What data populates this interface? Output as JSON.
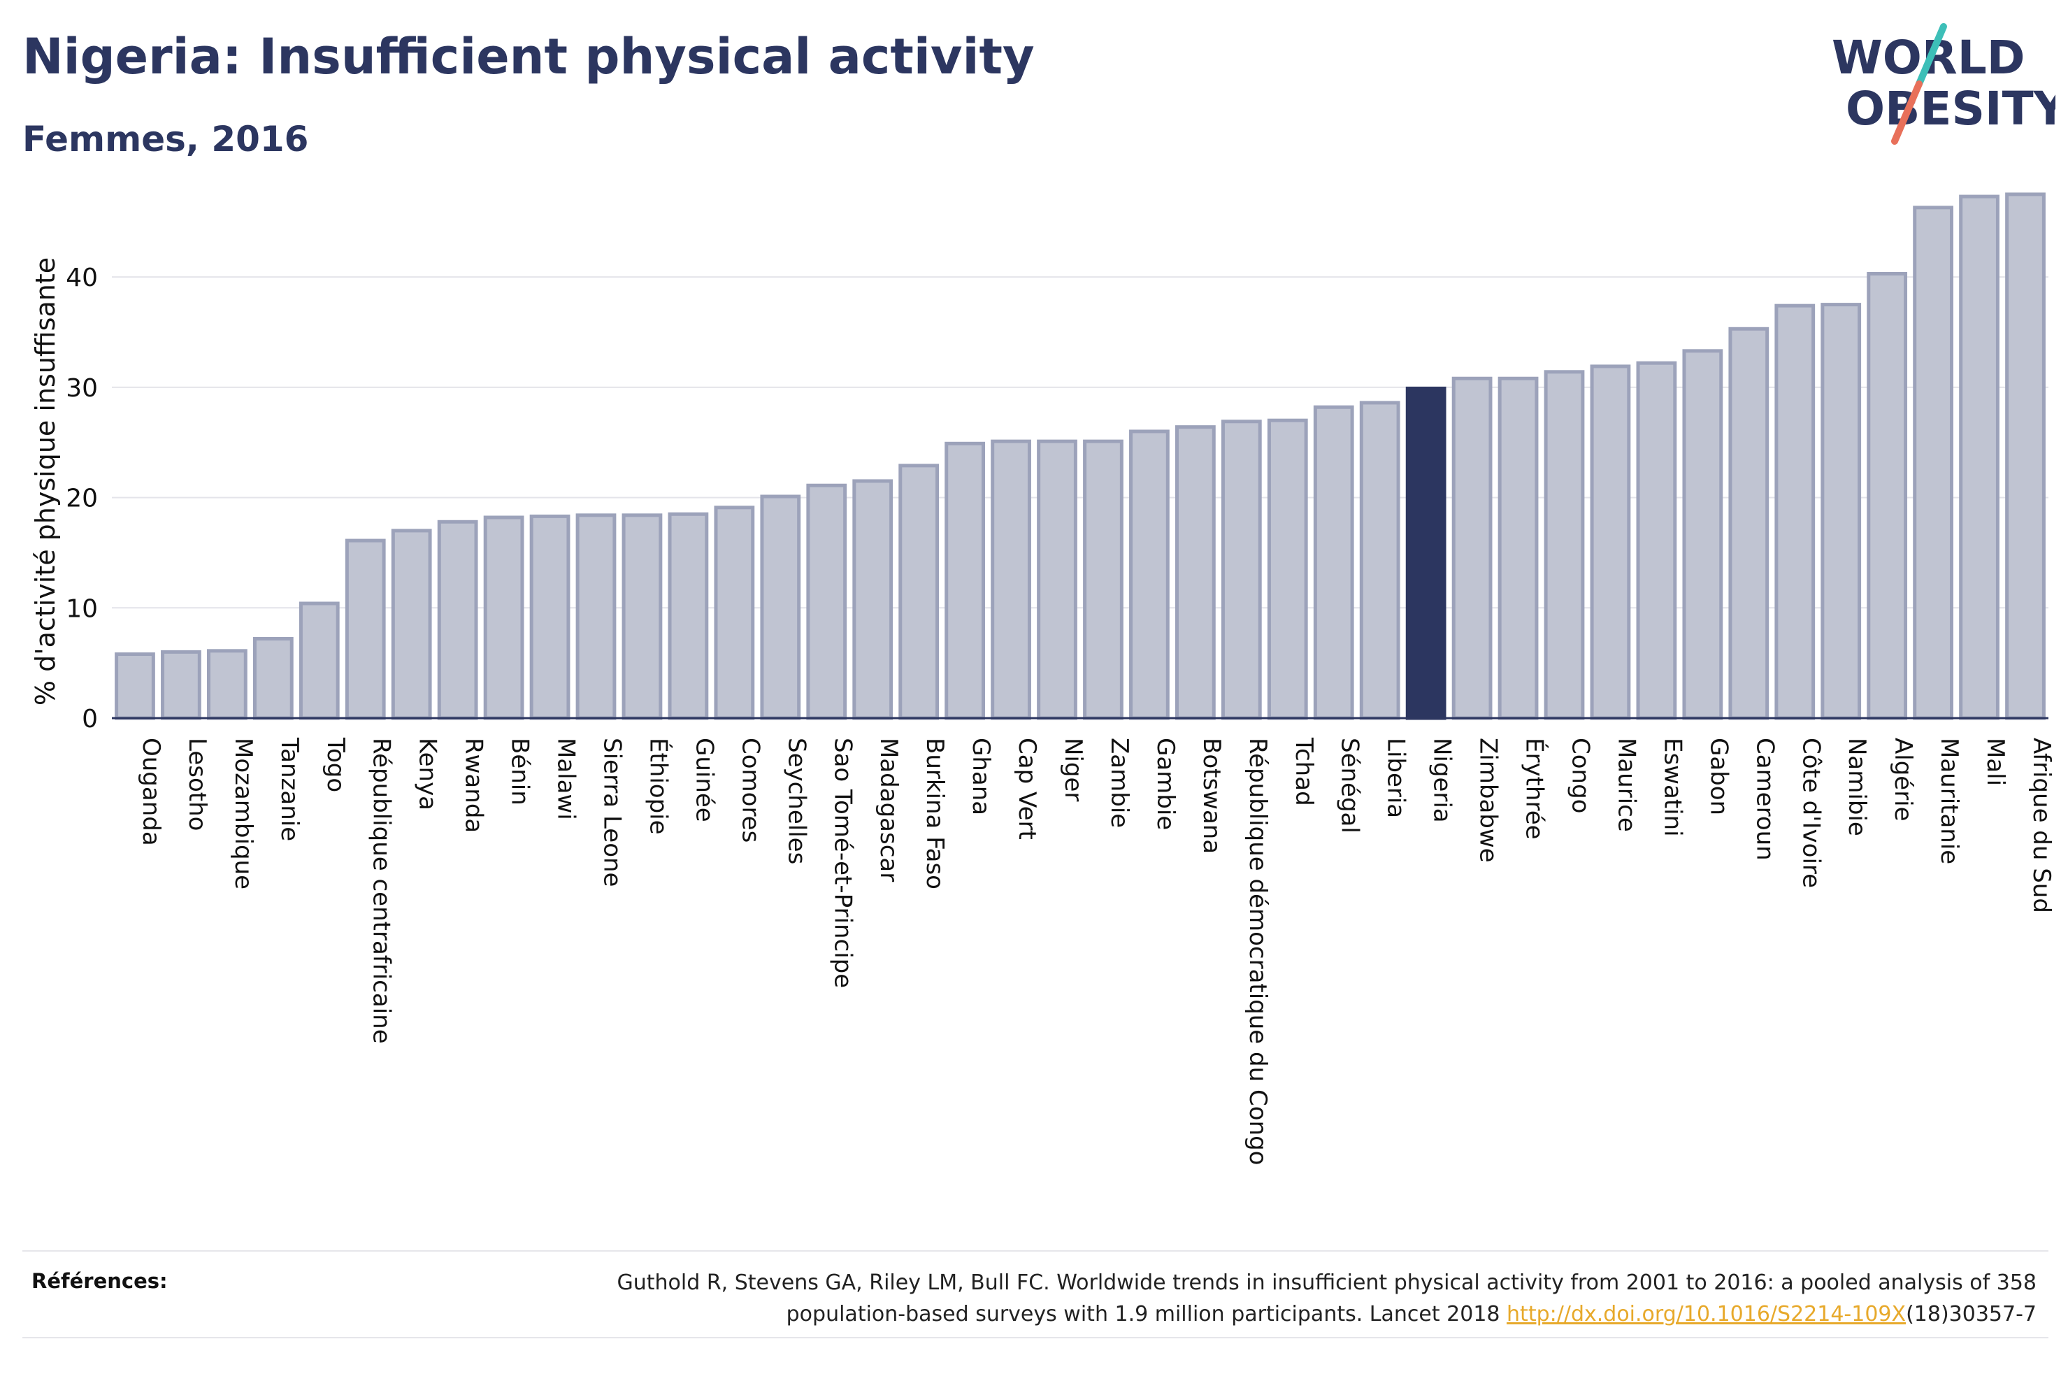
{
  "header": {
    "title": "Nigeria: Insufficient physical activity",
    "subtitle": "Femmes, 2016"
  },
  "logo": {
    "line1": "WORLD",
    "line2": "OBESITY",
    "text_color": "#2c3660",
    "slash_top_color": "#3dbfb8",
    "slash_bottom_color": "#e8705a"
  },
  "colors": {
    "bar": "#c0c4d2",
    "bar_border": "#9ca2ba",
    "highlight": "#2c3660",
    "grid": "#e4e4ea",
    "axis": "#2c3660"
  },
  "chart_data": {
    "type": "bar",
    "title": "Nigeria: Insufficient physical activity",
    "subtitle": "Femmes, 2016",
    "ylabel": "% d'activité physique insuffisante",
    "xlabel": "",
    "ylim": [
      0,
      48
    ],
    "yticks": [
      0,
      10,
      20,
      30,
      40
    ],
    "grid": true,
    "highlight": "Nigeria",
    "categories": [
      "Ouganda",
      "Lesotho",
      "Mozambique",
      "Tanzanie",
      "Togo",
      "République centrafricaine",
      "Kenya",
      "Rwanda",
      "Bénin",
      "Malawi",
      "Sierra Leone",
      "Éthiopie",
      "Guinée",
      "Comores",
      "Seychelles",
      "Sao Tomé-et-Principe",
      "Madagascar",
      "Burkina Faso",
      "Ghana",
      "Cap Vert",
      "Niger",
      "Zambie",
      "Gambie",
      "Botswana",
      "République démocratique du Congo",
      "Tchad",
      "Sénégal",
      "Liberia",
      "Nigeria",
      "Zimbabwe",
      "Érythrée",
      "Congo",
      "Maurice",
      "Eswatini",
      "Gabon",
      "Cameroun",
      "Côte d'Ivoire",
      "Namibie",
      "Algérie",
      "Mauritanie",
      "Mali",
      "Afrique du Sud"
    ],
    "values": [
      5.8,
      6.0,
      6.1,
      7.2,
      10.4,
      16.1,
      17.0,
      17.8,
      18.2,
      18.3,
      18.4,
      18.4,
      18.5,
      19.1,
      20.1,
      21.1,
      21.5,
      22.9,
      24.9,
      25.1,
      25.1,
      25.1,
      26.0,
      26.4,
      26.9,
      27.0,
      28.2,
      28.6,
      29.9,
      30.8,
      30.8,
      31.4,
      31.9,
      32.2,
      33.3,
      35.3,
      37.4,
      37.5,
      40.3,
      46.3,
      47.3,
      47.5
    ]
  },
  "references": {
    "label": "Références:",
    "line1": "Guthold R, Stevens GA, Riley LM, Bull FC. Worldwide trends in insufficient physical activity from 2001 to 2016: a pooled analysis of 358",
    "line2_before": "population-based surveys with 1.9 million participants. Lancet 2018 ",
    "link": "http://dx.doi.org/10.1016/S2214-109X",
    "line2_after": "(18)30357-7"
  }
}
